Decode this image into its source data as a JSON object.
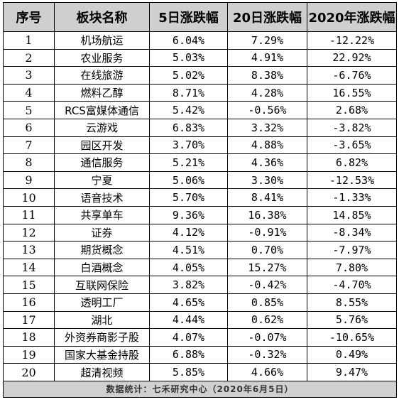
{
  "table": {
    "headers": [
      "序号",
      "板块名称",
      "5日涨跌幅",
      "20日涨跌幅",
      "2020年涨跌幅"
    ],
    "rows": [
      [
        "1",
        "机场航运",
        "6.04%",
        "7.29%",
        "-12.22%"
      ],
      [
        "2",
        "农业服务",
        "5.03%",
        "4.91%",
        "22.92%"
      ],
      [
        "3",
        "在线旅游",
        "5.02%",
        "8.38%",
        "-6.76%"
      ],
      [
        "4",
        "燃料乙醇",
        "8.71%",
        "4.28%",
        "16.55%"
      ],
      [
        "5",
        "RCS富媒体通信",
        "5.42%",
        "-0.56%",
        "2.68%"
      ],
      [
        "6",
        "云游戏",
        "6.83%",
        "3.32%",
        "-3.82%"
      ],
      [
        "7",
        "园区开发",
        "3.70%",
        "4.88%",
        "-3.65%"
      ],
      [
        "8",
        "通信服务",
        "5.21%",
        "4.36%",
        "6.82%"
      ],
      [
        "9",
        "宁夏",
        "5.06%",
        "3.30%",
        "-12.53%"
      ],
      [
        "10",
        "语音技术",
        "5.70%",
        "8.41%",
        "-1.33%"
      ],
      [
        "11",
        "共享单车",
        "9.36%",
        "16.38%",
        "14.85%"
      ],
      [
        "12",
        "证券",
        "4.12%",
        "-0.91%",
        "-8.34%"
      ],
      [
        "13",
        "期货概念",
        "4.51%",
        "0.70%",
        "-7.97%"
      ],
      [
        "14",
        "白酒概念",
        "4.05%",
        "15.27%",
        "7.80%"
      ],
      [
        "15",
        "互联网保险",
        "3.82%",
        "-0.42%",
        "-4.70%"
      ],
      [
        "16",
        "透明工厂",
        "4.65%",
        "0.85%",
        "8.55%"
      ],
      [
        "17",
        "湖北",
        "4.44%",
        "0.62%",
        "5.76%"
      ],
      [
        "18",
        "外资券商影子股",
        "4.07%",
        "-0.07%",
        "-10.65%"
      ],
      [
        "19",
        "国家大基金持股",
        "6.88%",
        "-0.32%",
        "0.49%"
      ],
      [
        "20",
        "超清视频",
        "5.85%",
        "4.66%",
        "9.47%"
      ]
    ],
    "footer": "数据统计：七禾研究中心（2020年6月5日）"
  }
}
